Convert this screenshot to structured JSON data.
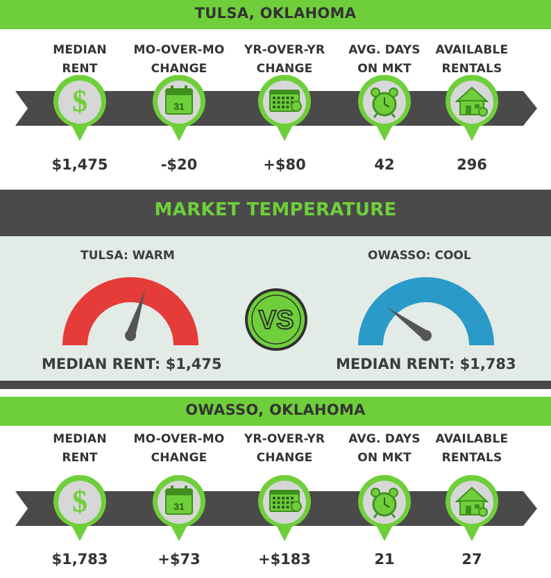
{
  "columns": [
    "MEDIAN\nRENT",
    "MO-OVER-MO\nCHANGE",
    "YR-OVER-YR\nCHANGE",
    "AVG. DAYS\nON MKT",
    "AVAILABLE\nRENTALS"
  ],
  "columns_lines": [
    [
      "MEDIAN",
      "RENT"
    ],
    [
      "MO-OVER-MO",
      "CHANGE"
    ],
    [
      "YR-OVER-YR",
      "CHANGE"
    ],
    [
      "AVG. DAYS",
      "ON MKT"
    ],
    [
      "AVAILABLE",
      "RENTALS"
    ]
  ],
  "icons": [
    "dollar-icon",
    "calendar-31-icon",
    "calendar-grid-icon",
    "alarm-clock-icon",
    "house-icon"
  ],
  "calendar_day": "31",
  "tulsa": {
    "title": "TULSA, OKLAHOMA",
    "values": [
      "$1,475",
      "-$20",
      "+$80",
      "42",
      "296"
    ]
  },
  "owasso": {
    "title": "OWASSO, OKLAHOMA",
    "values": [
      "$1,783",
      "+$73",
      "+$183",
      "21",
      "27"
    ]
  },
  "market": {
    "title": "MARKET TEMPERATURE",
    "left_label": "TULSA: WARM",
    "right_label": "OWASSO: COOL",
    "vs": "VS",
    "left_median": "MEDIAN RENT: $1,475",
    "right_median": "MEDIAN RENT: $1,783",
    "left_gauge_level": 0.6,
    "right_gauge_level": 0.2,
    "colors": {
      "warm": "#e53c3a",
      "cool": "#2a9ac8",
      "accent": "#6fcf3a",
      "dark": "#4a4a4a"
    }
  }
}
